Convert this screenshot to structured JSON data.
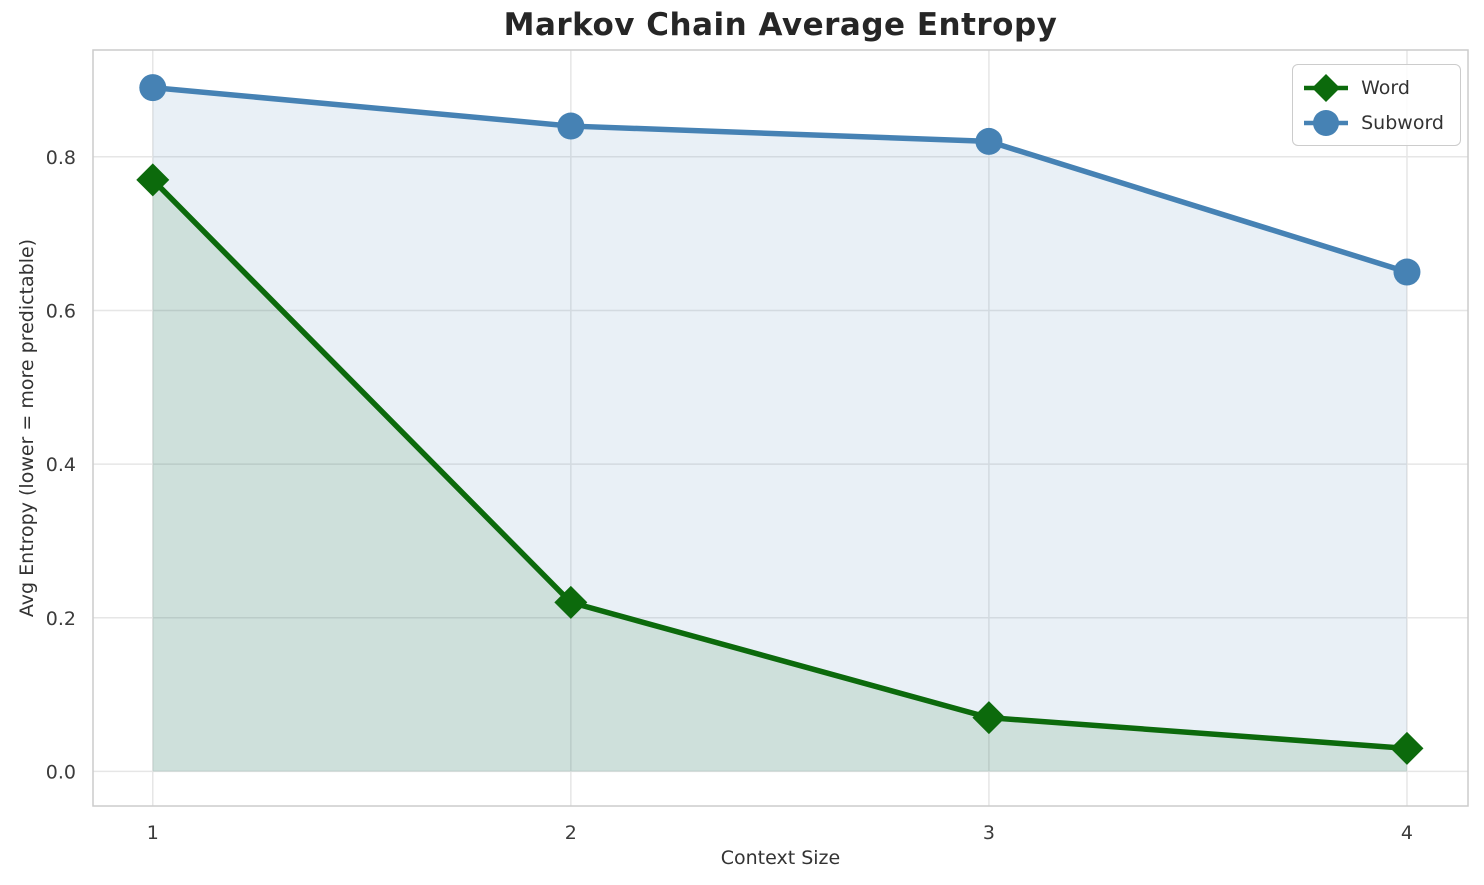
{
  "chart_data": {
    "type": "line",
    "title": "Markov Chain Average Entropy",
    "xlabel": "Context Size",
    "ylabel": "Avg Entropy (lower = more predictable)",
    "x": [
      1,
      2,
      3,
      4
    ],
    "series": [
      {
        "name": "Word",
        "marker": "diamond",
        "color": "#0c6a0c",
        "fill_color": "rgba(10,106,10,0.12)",
        "values": [
          0.77,
          0.22,
          0.07,
          0.03
        ]
      },
      {
        "name": "Subword",
        "marker": "circle",
        "color": "#4682b4",
        "fill_color": "rgba(70,130,180,0.12)",
        "values": [
          0.89,
          0.84,
          0.82,
          0.65
        ]
      }
    ],
    "xticks": [
      1,
      2,
      3,
      4
    ],
    "yticks": [
      0.0,
      0.2,
      0.4,
      0.6,
      0.8
    ],
    "xlim": [
      0.857,
      4.146
    ],
    "ylim": [
      -0.045,
      0.939
    ],
    "grid": true,
    "area_fill": true,
    "legend": {
      "position": "upper right",
      "labels": [
        "Word",
        "Subword"
      ]
    }
  },
  "style": {
    "background": "#ffffff",
    "grid_color": "#e6e6e6",
    "spine_color": "#cccccc",
    "tick_color": "#3b3b3b",
    "label_color": "#333333",
    "title_color": "#262626",
    "legend_border": "#cccccc"
  }
}
